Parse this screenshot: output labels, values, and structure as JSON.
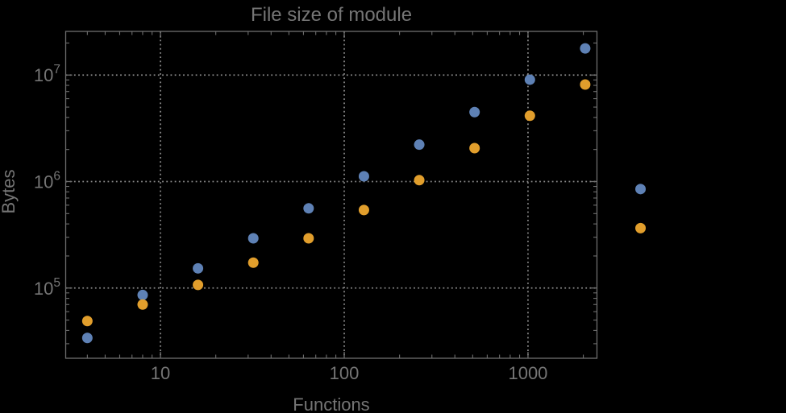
{
  "colors": {
    "background": "#000000",
    "text": "#757575",
    "frame": "#6e6e6e",
    "grid": "#878787",
    "series_blue": "#5E81B5",
    "series_orange": "#E19E2C"
  },
  "chart_data": {
    "type": "scatter",
    "title": "File size of module",
    "xlabel": "Functions",
    "ylabel": "Bytes",
    "x_scale": "log",
    "y_scale": "log",
    "grid": "dotted",
    "legend": "none",
    "plot_range_clipping": false,
    "xlim": [
      3.05,
      2373
    ],
    "ylim": [
      21900,
      25700000
    ],
    "x_ticks": [
      10,
      100,
      1000
    ],
    "x_tick_labels": [
      "10",
      "100",
      "1000"
    ],
    "y_tick_exponents": [
      5,
      6,
      7
    ],
    "y_tick_base": "10",
    "marker_radius_px": 6.5,
    "x": [
      4,
      8,
      16,
      32,
      64,
      128,
      256,
      512,
      1024,
      2048,
      4096
    ],
    "series": [
      {
        "name": "blue-series",
        "color": "#5E81B5",
        "values": [
          34000,
          86000,
          153000,
          293000,
          560000,
          1120000,
          2220000,
          4490000,
          9050000,
          17800000,
          850000
        ]
      },
      {
        "name": "orange-series",
        "color": "#E19E2C",
        "values": [
          49000,
          70000,
          107000,
          173000,
          293000,
          540000,
          1030000,
          2060000,
          4150000,
          8150000,
          365000
        ]
      }
    ]
  }
}
